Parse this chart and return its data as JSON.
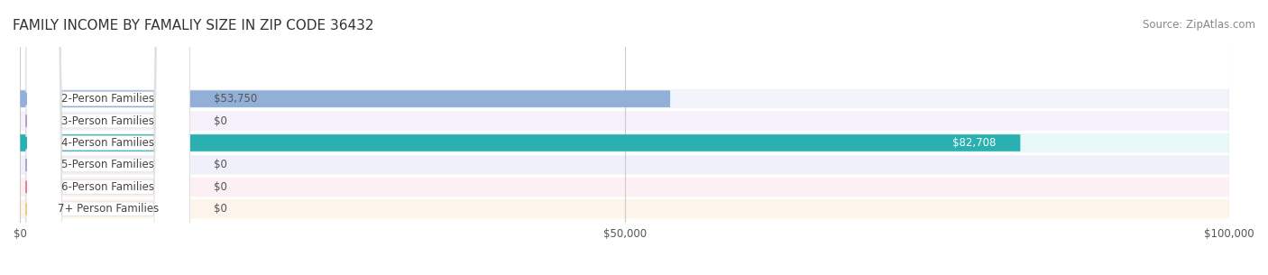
{
  "title": "FAMILY INCOME BY FAMALIY SIZE IN ZIP CODE 36432",
  "source": "Source: ZipAtlas.com",
  "categories": [
    "2-Person Families",
    "3-Person Families",
    "4-Person Families",
    "5-Person Families",
    "6-Person Families",
    "7+ Person Families"
  ],
  "values": [
    53750,
    0,
    82708,
    0,
    0,
    0
  ],
  "bar_colors": [
    "#92afd7",
    "#b8a0cc",
    "#2ab0b0",
    "#a8a8d8",
    "#f08090",
    "#f5c892"
  ],
  "label_colors": [
    "#92afd7",
    "#b8a0cc",
    "#2ab0b0",
    "#a8a8d8",
    "#f08090",
    "#f5c892"
  ],
  "row_bg_colors": [
    "#f0f4fa",
    "#f5f0fa",
    "#e8f8f8",
    "#f0f0fa",
    "#fdf0f4",
    "#fdf5ec"
  ],
  "xlim": [
    0,
    100000
  ],
  "xticks": [
    0,
    50000,
    100000
  ],
  "xtick_labels": [
    "$0",
    "$50,000",
    "$100,000"
  ],
  "title_fontsize": 11,
  "source_fontsize": 8.5,
  "label_fontsize": 8.5,
  "value_fontsize": 8.5,
  "background_color": "#ffffff"
}
